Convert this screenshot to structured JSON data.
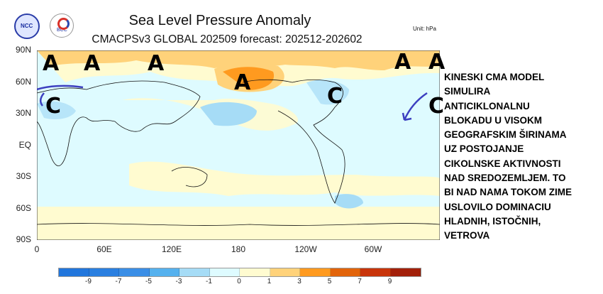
{
  "header": {
    "title": "Sea Level Pressure Anomaly",
    "subtitle": "CMACPSv3 GLOBAL 202509 forecast: 202512-202602",
    "unit": "Unit:  hPa",
    "logos": [
      "NCC",
      "BCC"
    ]
  },
  "axes": {
    "lat_labels": [
      "90N",
      "60N",
      "30N",
      "EQ",
      "30S",
      "60S",
      "90S"
    ],
    "lon_labels": [
      "0",
      "60E",
      "120E",
      "180",
      "120W",
      "60W"
    ]
  },
  "colorbar": {
    "labels": [
      "-9",
      "-7",
      "-5",
      "-3",
      "-1",
      "0",
      "1",
      "3",
      "5",
      "7",
      "9"
    ],
    "colors": [
      "#2176dc",
      "#2a7fe0",
      "#3a8ee6",
      "#55b1ee",
      "#a6dcf6",
      "#defbff",
      "#fffbd0",
      "#ffd27a",
      "#ff9a1f",
      "#e2640a",
      "#c8340a",
      "#a3200a"
    ]
  },
  "annotations": {
    "markers": [
      {
        "label": "A",
        "lon": 10,
        "lat": 78
      },
      {
        "label": "A",
        "lon": 47,
        "lat": 78
      },
      {
        "label": "A",
        "lon": 98,
        "lat": 78
      },
      {
        "label": "A",
        "lon": 181,
        "lat": 62
      },
      {
        "label": "A",
        "lon": 324,
        "lat": 80
      },
      {
        "label": "A",
        "lon": 350,
        "lat": 80
      },
      {
        "label": "C",
        "lon": 15,
        "lat": 35
      },
      {
        "label": "C",
        "lon": 261,
        "lat": 50
      },
      {
        "label": "C",
        "lon": 354,
        "lat": 38
      }
    ],
    "note": "KINESKI CMA MODEL\nSIMULIRA\nANTICIKLONALNU\nBLOKADU U VISOKM\nGEOGRAFSKIM ŠIRINAMA\nUZ POSTOJANJE\nCIKOLNSKE AKTIVNOSTI\nNAD SREDOZEMLJEM. TO\nBI NAD NAMA TOKOM ZIME\nUSLOVILO DOMINACIU\nHLADNIH, ISTOČNIH,\nVETROVA"
  }
}
